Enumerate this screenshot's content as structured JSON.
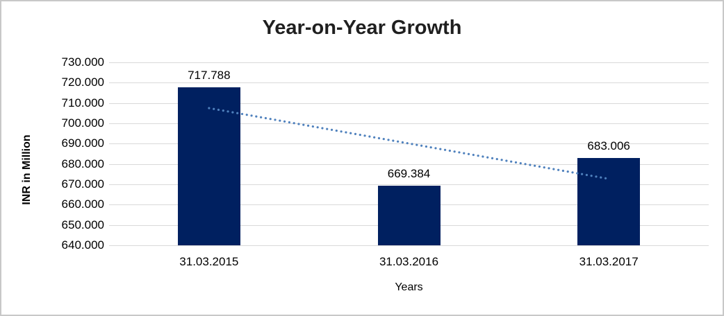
{
  "chart_data": {
    "type": "bar",
    "title": "Year-on-Year Growth",
    "xlabel": "Years",
    "ylabel": "INR in Million",
    "categories": [
      "31.03.2015",
      "31.03.2016",
      "31.03.2017"
    ],
    "values": [
      717.788,
      669.384,
      683.006
    ],
    "value_labels": [
      "717.788",
      "669.384",
      "683.006"
    ],
    "ylim": [
      640,
      730
    ],
    "ytick_step": 10,
    "ytick_labels": [
      "730.000",
      "720.000",
      "710.000",
      "700.000",
      "690.000",
      "680.000",
      "670.000",
      "660.000",
      "650.000",
      "640.000"
    ],
    "grid": true,
    "legend": false,
    "colors": {
      "bar": "#002060",
      "trendline": "#4F81BD",
      "gridline": "#d9d9d9",
      "title_text": "#1f1f1f",
      "axis_text": "#000000",
      "frame_border": "#c8c8c8",
      "background": "#ffffff"
    },
    "trendline": {
      "style": "dotted",
      "start_value": 707.5,
      "end_value": 672.7
    }
  }
}
